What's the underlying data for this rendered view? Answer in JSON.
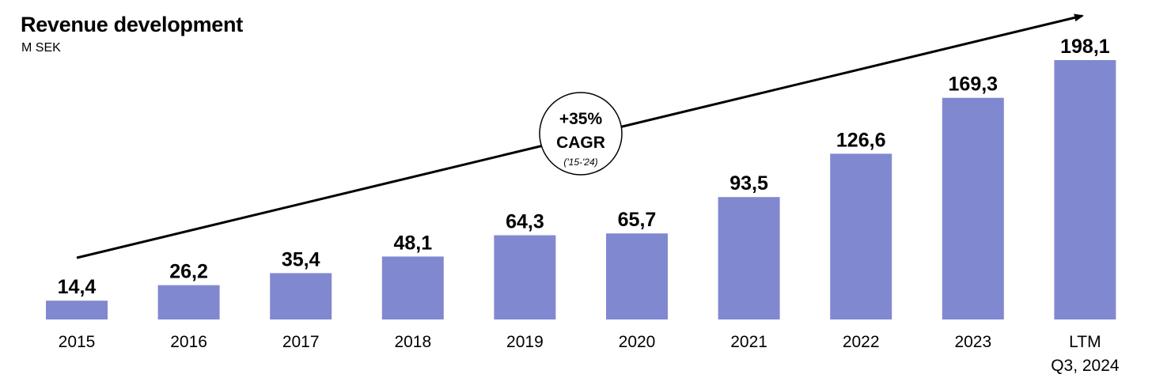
{
  "chart_data": {
    "type": "bar",
    "title": "Revenue development",
    "subtitle": "M SEK",
    "categories": [
      "2015",
      "2016",
      "2017",
      "2018",
      "2019",
      "2020",
      "2021",
      "2022",
      "2023",
      "LTM Q3, 2024"
    ],
    "category_lines": [
      [
        "2015"
      ],
      [
        "2016"
      ],
      [
        "2017"
      ],
      [
        "2018"
      ],
      [
        "2019"
      ],
      [
        "2020"
      ],
      [
        "2021"
      ],
      [
        "2022"
      ],
      [
        "2023"
      ],
      [
        "LTM",
        "Q3, 2024"
      ]
    ],
    "values": [
      14.4,
      26.2,
      35.4,
      48.1,
      64.3,
      65.7,
      93.5,
      126.6,
      169.3,
      198.1
    ],
    "value_labels": [
      "14,4",
      "26,2",
      "35,4",
      "48,1",
      "64,3",
      "65,7",
      "93,5",
      "126,6",
      "169,3",
      "198,1"
    ],
    "bar_color": "#8089cf",
    "grid": false,
    "legend": "none",
    "ylim": [
      0,
      198.1
    ],
    "annotation": {
      "line1": "+35%",
      "line2": "CAGR",
      "line3": "('15-'24)"
    }
  }
}
